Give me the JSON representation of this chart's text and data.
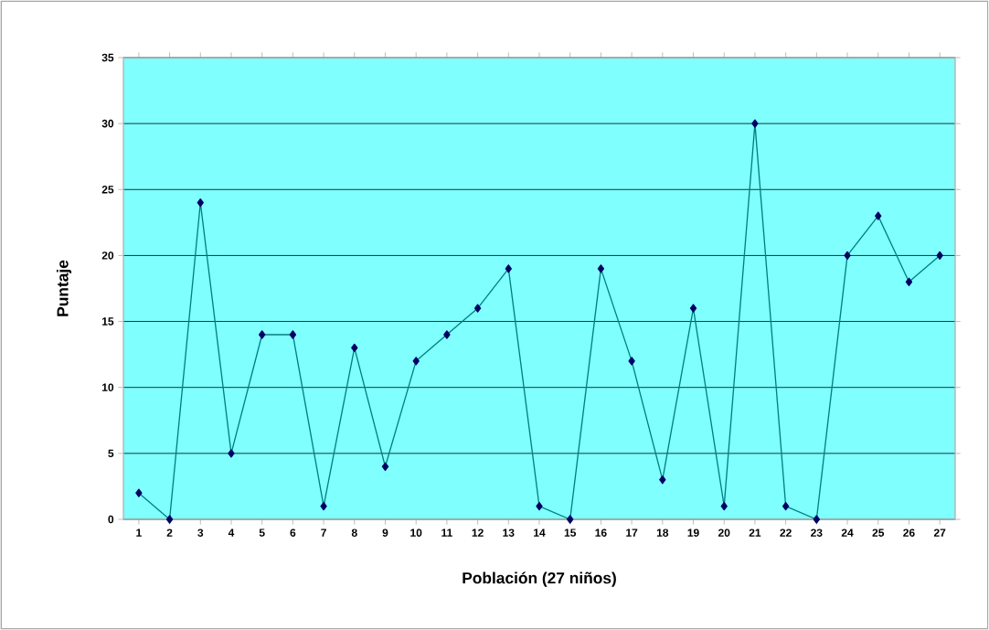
{
  "chart_data": {
    "type": "line",
    "xlabel": "Población (27 niños)",
    "ylabel": "Puntaje",
    "categories": [
      "1",
      "2",
      "3",
      "4",
      "5",
      "6",
      "7",
      "8",
      "9",
      "10",
      "11",
      "12",
      "13",
      "14",
      "15",
      "16",
      "17",
      "18",
      "19",
      "20",
      "21",
      "22",
      "23",
      "24",
      "25",
      "26",
      "27"
    ],
    "series": [
      {
        "color": "#008080",
        "values": [
          2,
          0,
          24,
          5,
          14,
          14,
          1,
          13,
          4,
          12,
          14,
          16,
          19,
          1,
          0,
          19,
          12,
          3,
          16,
          1,
          30,
          1,
          0,
          20,
          23,
          18,
          20
        ]
      }
    ],
    "ylim": [
      0,
      35
    ],
    "yticks": [
      0,
      5,
      10,
      15,
      20,
      25,
      30,
      35
    ],
    "grid": "y",
    "marker": "diamond",
    "line_style": "solid"
  }
}
